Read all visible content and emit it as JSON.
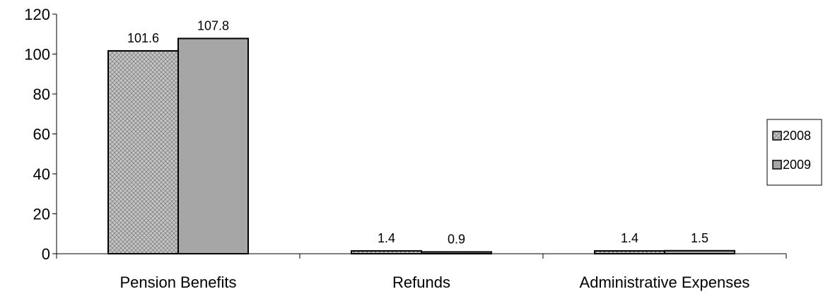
{
  "chart_data": {
    "type": "bar",
    "categories": [
      "Pension Benefits",
      "Refunds",
      "Administrative Expenses"
    ],
    "series": [
      {
        "name": "2008",
        "values": [
          101.6,
          1.4,
          1.4
        ],
        "pattern": "crosshatch",
        "color": "#c0c0c0"
      },
      {
        "name": "2009",
        "values": [
          107.8,
          0.9,
          1.5
        ],
        "pattern": "solid",
        "color": "#a6a6a6"
      }
    ],
    "data_labels": [
      [
        "101.6",
        "1.4",
        "1.4"
      ],
      [
        "107.8",
        "0.9",
        "1.5"
      ]
    ],
    "ylim": [
      0,
      120
    ],
    "yticks": [
      0,
      20,
      40,
      60,
      80,
      100,
      120
    ],
    "ytick_labels": [
      "0",
      "20",
      "40",
      "60",
      "80",
      "100",
      "120"
    ],
    "title": "",
    "xlabel": "",
    "ylabel": "",
    "grid": false,
    "legend_position": "right",
    "legend_labels": [
      "2008",
      "2009"
    ]
  }
}
